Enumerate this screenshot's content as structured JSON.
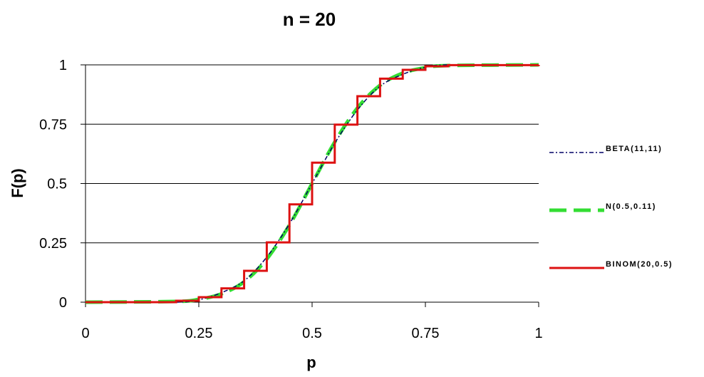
{
  "chart_data": {
    "type": "line",
    "title": "n = 20",
    "xlabel": "p",
    "ylabel": "F(p)",
    "xlim": [
      0,
      1
    ],
    "ylim": [
      0,
      1
    ],
    "x_ticks": [
      "0",
      "0.25",
      "0.5",
      "0.75",
      "1"
    ],
    "y_ticks": [
      "0",
      "0.25",
      "0.5",
      "0.75",
      "1"
    ],
    "grid": "horizontal",
    "legend_position": "right",
    "series": [
      {
        "name": "BETA(11,11)",
        "color": "#000066",
        "style": "dash-dot",
        "x": [
          0,
          0.2,
          0.25,
          0.3,
          0.35,
          0.4,
          0.45,
          0.5,
          0.55,
          0.6,
          0.65,
          0.7,
          0.75,
          0.8,
          1
        ],
        "y": [
          0,
          0.0,
          0.01,
          0.04,
          0.09,
          0.19,
          0.33,
          0.5,
          0.67,
          0.81,
          0.91,
          0.96,
          0.99,
          1.0,
          1.0
        ]
      },
      {
        "name": "N(0.5,0.11)",
        "color": "#33dd33",
        "style": "dashed",
        "x": [
          0,
          0.2,
          0.25,
          0.3,
          0.35,
          0.4,
          0.45,
          0.5,
          0.55,
          0.6,
          0.65,
          0.7,
          0.75,
          0.8,
          1
        ],
        "y": [
          0,
          0.003,
          0.012,
          0.035,
          0.086,
          0.182,
          0.325,
          0.5,
          0.675,
          0.818,
          0.914,
          0.965,
          0.988,
          0.997,
          1.0
        ]
      },
      {
        "name": "BINOM(20,0.5)",
        "color": "#dd1111",
        "style": "step",
        "x": [
          0.19,
          0.2,
          0.25,
          0.3,
          0.35,
          0.4,
          0.45,
          0.5,
          0.55,
          0.6,
          0.65,
          0.7,
          0.75,
          0.8,
          1
        ],
        "y": [
          0,
          0.006,
          0.021,
          0.058,
          0.132,
          0.252,
          0.412,
          0.588,
          0.748,
          0.868,
          0.942,
          0.979,
          0.994,
          0.999,
          1.0
        ]
      }
    ]
  }
}
